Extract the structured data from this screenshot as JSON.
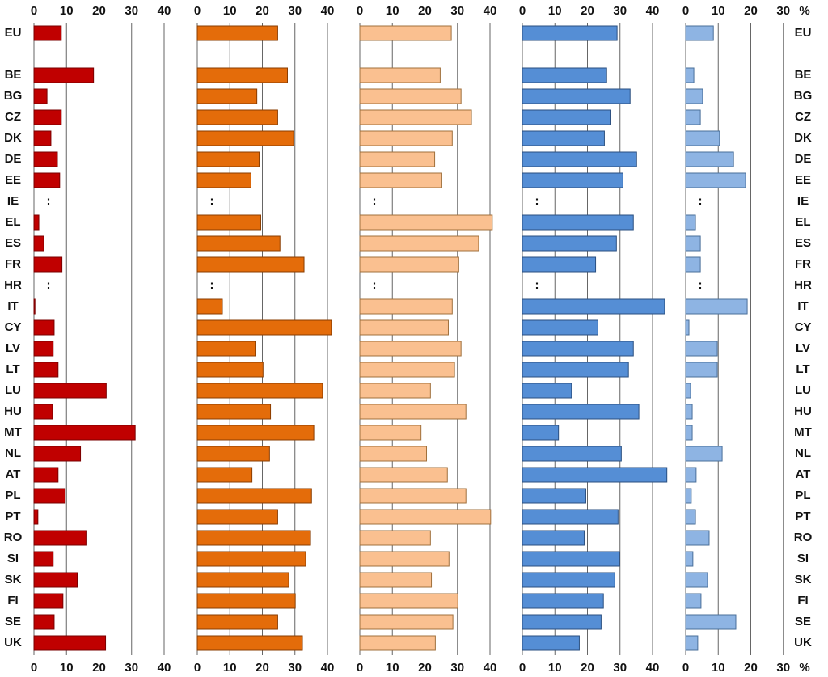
{
  "chart_data": [
    {
      "type": "bar",
      "orientation": "horizontal",
      "color": "#c00000",
      "categories": [
        "EU",
        null,
        "BE",
        "BG",
        "CZ",
        "DK",
        "DE",
        "EE",
        "IE",
        "EL",
        "ES",
        "FR",
        "HR",
        "IT",
        "CY",
        "LV",
        "LT",
        "LU",
        "HU",
        "MT",
        "NL",
        "AT",
        "PL",
        "PT",
        "RO",
        "SI",
        "SK",
        "FI",
        "SE",
        "UK"
      ],
      "values": [
        8.4,
        null,
        18.3,
        4,
        8.4,
        5.2,
        7.2,
        7.9,
        null,
        1.5,
        3,
        8.6,
        null,
        0.3,
        6.2,
        5.9,
        7.4,
        22.2,
        5.7,
        31.1,
        14.3,
        7.4,
        9.6,
        1.2,
        16,
        5.9,
        13.3,
        8.9,
        6.2,
        22
      ],
      "value_labels": [
        null,
        null,
        null,
        null,
        null,
        null,
        null,
        null,
        ":",
        null,
        null,
        null,
        ":",
        null,
        null,
        null,
        null,
        null,
        null,
        null,
        null,
        null,
        null,
        null,
        null,
        null,
        null,
        null,
        null,
        null
      ],
      "xlim": [
        0,
        50
      ],
      "xticks": [
        0,
        10,
        20,
        30,
        40
      ],
      "grid": true
    },
    {
      "type": "bar",
      "orientation": "horizontal",
      "color": "#e46c0a",
      "values": [
        24.7,
        null,
        27.7,
        18.3,
        24.7,
        29.6,
        19,
        16.5,
        null,
        19.5,
        25.4,
        32.8,
        null,
        7.7,
        41.2,
        17.8,
        20.2,
        38.5,
        22.5,
        35.8,
        22.2,
        16.8,
        35.1,
        24.7,
        34.8,
        33.3,
        28.1,
        30.1,
        24.7,
        32.3
      ],
      "value_labels": [
        null,
        null,
        null,
        null,
        null,
        null,
        null,
        null,
        ":",
        null,
        null,
        null,
        ":",
        null,
        null,
        null,
        null,
        null,
        null,
        null,
        null,
        null,
        null,
        null,
        null,
        null,
        null,
        null,
        null,
        null
      ],
      "xlim": [
        0,
        50
      ],
      "xticks": [
        0,
        10,
        20,
        30,
        40
      ],
      "grid": true
    },
    {
      "type": "bar",
      "orientation": "horizontal",
      "color": "#fac090",
      "values": [
        28.1,
        null,
        24.7,
        31.1,
        34.3,
        28.4,
        23,
        25.2,
        null,
        40.7,
        36.5,
        30.4,
        null,
        28.4,
        27.2,
        31.1,
        29.1,
        21.7,
        32.6,
        18.8,
        20.5,
        26.9,
        32.6,
        40.2,
        21.7,
        27.4,
        22,
        30.1,
        28.6,
        23.2
      ],
      "value_labels": [
        null,
        null,
        null,
        null,
        null,
        null,
        null,
        null,
        ":",
        null,
        null,
        null,
        ":",
        null,
        null,
        null,
        null,
        null,
        null,
        null,
        null,
        null,
        null,
        null,
        null,
        null,
        null,
        null,
        null,
        null
      ],
      "xlim": [
        0,
        50
      ],
      "xticks": [
        0,
        10,
        20,
        30,
        40
      ],
      "grid": true
    },
    {
      "type": "bar",
      "orientation": "horizontal",
      "color": "#558ed5",
      "values": [
        29.1,
        null,
        25.9,
        33.1,
        27.2,
        25.2,
        35.1,
        30.9,
        null,
        34.1,
        28.9,
        22.5,
        null,
        43.7,
        23.2,
        34.1,
        32.6,
        15.1,
        35.8,
        11.1,
        30.4,
        44.4,
        19.5,
        29.4,
        19,
        29.9,
        28.4,
        24.9,
        24.2,
        17.5
      ],
      "value_labels": [
        null,
        null,
        null,
        null,
        null,
        null,
        null,
        null,
        ":",
        null,
        null,
        null,
        ":",
        null,
        null,
        null,
        null,
        null,
        null,
        null,
        null,
        null,
        null,
        null,
        null,
        null,
        null,
        null,
        null,
        null
      ],
      "xlim": [
        0,
        50
      ],
      "xticks": [
        0,
        10,
        20,
        30,
        40
      ],
      "grid": true
    },
    {
      "type": "bar",
      "orientation": "horizontal",
      "color": "#8eb4e3",
      "categories": [
        "EU",
        null,
        "BE",
        "BG",
        "CZ",
        "DK",
        "DE",
        "EE",
        "IE",
        "EL",
        "ES",
        "FR",
        "HR",
        "IT",
        "CY",
        "LV",
        "LT",
        "LU",
        "HU",
        "MT",
        "NL",
        "AT",
        "PL",
        "PT",
        "RO",
        "SI",
        "SK",
        "FI",
        "SE",
        "UK"
      ],
      "values": [
        8.5,
        null,
        2.5,
        5.2,
        4.5,
        10.4,
        14.7,
        18.4,
        null,
        3,
        4.5,
        4.5,
        null,
        18.9,
        1,
        9.7,
        9.7,
        1.5,
        2,
        2,
        11.2,
        3.2,
        1.7,
        3,
        7.2,
        2.2,
        6.7,
        4.7,
        15.4,
        3.7
      ],
      "value_labels": [
        null,
        null,
        null,
        null,
        null,
        null,
        null,
        null,
        ":",
        null,
        null,
        null,
        ":",
        null,
        null,
        null,
        null,
        null,
        null,
        null,
        null,
        null,
        null,
        null,
        null,
        null,
        null,
        null,
        null,
        null
      ],
      "xlim": [
        0,
        30
      ],
      "xticks": [
        0,
        10,
        20,
        30
      ],
      "xlabel": "%",
      "grid": true
    }
  ]
}
